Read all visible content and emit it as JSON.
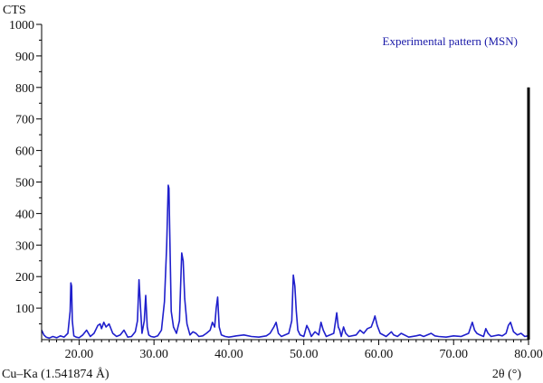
{
  "chart_data": {
    "type": "line",
    "ylabel": "CTS",
    "xlabel": "2θ (°)",
    "radiation_label": "Cu–Ka (1.541874 Å)",
    "legend": "Experimental pattern (MSN)",
    "xlim": [
      15,
      80
    ],
    "ylim": [
      0,
      1000
    ],
    "x_ticks": [
      20,
      30,
      40,
      50,
      60,
      70,
      80
    ],
    "x_tick_labels": [
      "20.00",
      "30.00",
      "40.00",
      "50.00",
      "60.00",
      "70.00",
      "80.00"
    ],
    "y_ticks": [
      100,
      200,
      300,
      400,
      500,
      600,
      700,
      800,
      900,
      1000
    ],
    "y_tick_labels": [
      "100",
      "200",
      "300",
      "400",
      "500",
      "600",
      "700",
      "800",
      "900",
      "1000"
    ],
    "line_color": "#1f1fcc",
    "series": [
      {
        "x": [
          15,
          15.3,
          15.6,
          16.0,
          16.5,
          17.0,
          17.5,
          18.0,
          18.5,
          18.8,
          18.9,
          19.0,
          19.1,
          19.3,
          19.6,
          20.0,
          20.5,
          21.0,
          21.5,
          22.0,
          22.5,
          22.8,
          23.0,
          23.3,
          23.6,
          24.0,
          24.5,
          25.0,
          25.5,
          26.0,
          26.5,
          27.0,
          27.5,
          27.8,
          28.0,
          28.2,
          28.4,
          28.7,
          28.9,
          29.1,
          29.3,
          29.6,
          30.0,
          30.5,
          31.0,
          31.4,
          31.7,
          31.9,
          32.0,
          32.1,
          32.3,
          32.6,
          33.0,
          33.4,
          33.7,
          33.9,
          34.1,
          34.4,
          34.8,
          35.2,
          35.6,
          36.0,
          36.5,
          37.0,
          37.5,
          37.8,
          38.1,
          38.3,
          38.5,
          38.7,
          39.0,
          39.5,
          40.0,
          41.0,
          42.0,
          43.0,
          44.0,
          45.0,
          45.5,
          46.0,
          46.3,
          46.6,
          47.0,
          47.5,
          48.0,
          48.4,
          48.6,
          48.8,
          49.0,
          49.2,
          49.5,
          50.0,
          50.4,
          50.7,
          51.0,
          51.5,
          52.0,
          52.3,
          52.6,
          53.0,
          53.5,
          54.0,
          54.4,
          54.6,
          54.8,
          55.0,
          55.3,
          55.6,
          56.0,
          57.0,
          57.5,
          58.0,
          58.5,
          59.0,
          59.3,
          59.5,
          59.8,
          60.2,
          61.0,
          61.7,
          62.0,
          62.5,
          63.0,
          64.0,
          65.0,
          65.5,
          66.0,
          67.0,
          67.5,
          68.0,
          69.0,
          70.0,
          71.0,
          72.0,
          72.5,
          72.8,
          73.1,
          73.5,
          74.0,
          74.3,
          74.6,
          75.0,
          76.0,
          76.5,
          77.0,
          77.3,
          77.6,
          78.0,
          78.5,
          79.0,
          79.5,
          79.9
        ],
        "y": [
          30,
          15,
          8,
          5,
          10,
          6,
          12,
          8,
          20,
          90,
          180,
          170,
          60,
          12,
          8,
          6,
          15,
          30,
          10,
          20,
          45,
          50,
          35,
          55,
          40,
          50,
          20,
          10,
          15,
          30,
          8,
          10,
          25,
          60,
          190,
          100,
          20,
          60,
          140,
          40,
          15,
          10,
          8,
          12,
          30,
          120,
          300,
          490,
          480,
          350,
          90,
          40,
          20,
          60,
          275,
          250,
          130,
          50,
          15,
          25,
          20,
          10,
          12,
          20,
          30,
          55,
          40,
          100,
          135,
          40,
          15,
          10,
          8,
          12,
          15,
          10,
          8,
          12,
          20,
          40,
          55,
          20,
          10,
          15,
          20,
          60,
          205,
          170,
          90,
          30,
          15,
          10,
          45,
          30,
          10,
          25,
          15,
          55,
          30,
          10,
          15,
          20,
          85,
          40,
          30,
          10,
          40,
          20,
          10,
          15,
          30,
          20,
          35,
          40,
          60,
          75,
          45,
          20,
          10,
          25,
          15,
          10,
          20,
          8,
          12,
          15,
          10,
          20,
          12,
          10,
          8,
          12,
          10,
          20,
          55,
          30,
          20,
          15,
          10,
          35,
          20,
          10,
          15,
          12,
          20,
          45,
          55,
          25,
          15,
          20,
          10,
          12
        ]
      }
    ]
  }
}
